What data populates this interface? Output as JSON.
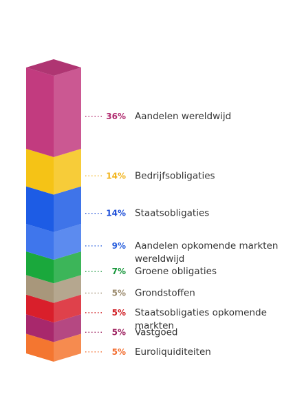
{
  "chart_data": {
    "type": "stacked-bar",
    "categories": [
      "Aandelen wereldwijd",
      "Bedrijfsobligaties",
      "Staatsobligaties",
      "Aandelen opkomende markten wereldwijd",
      "Groene obligaties",
      "Grondstoffen",
      "Staatsobligaties opkomende markten",
      "Vastgoed",
      "Euroliquiditeiten"
    ],
    "values": [
      36,
      14,
      14,
      9,
      7,
      5,
      5,
      5,
      5
    ],
    "value_labels": [
      "36%",
      "14%",
      "14%",
      "9%",
      "7%",
      "5%",
      "5%",
      "5%",
      "5%"
    ],
    "label_lines": [
      [
        "Aandelen wereldwijd"
      ],
      [
        "Bedrijfsobligaties"
      ],
      [
        "Staatsobligaties"
      ],
      [
        "Aandelen opkomende markten",
        "wereldwijd"
      ],
      [
        "Groene obligaties"
      ],
      [
        "Grondstoffen"
      ],
      [
        "Staatsobligaties opkomende",
        "markten"
      ],
      [
        "Vastgoed"
      ],
      [
        "Euroliquiditeiten"
      ]
    ],
    "colors": [
      "#c23b7f",
      "#f5c316",
      "#1d5ce5",
      "#3f76ec",
      "#1aa83c",
      "#a8977b",
      "#d91f2b",
      "#a8286c",
      "#f47630"
    ],
    "label_colors": [
      "#b02a6e",
      "#f2b41c",
      "#1e4fd8",
      "#2a60dd",
      "#16963a",
      "#9c8b6e",
      "#d01c22",
      "#9c1f5e",
      "#f26a2b"
    ]
  }
}
